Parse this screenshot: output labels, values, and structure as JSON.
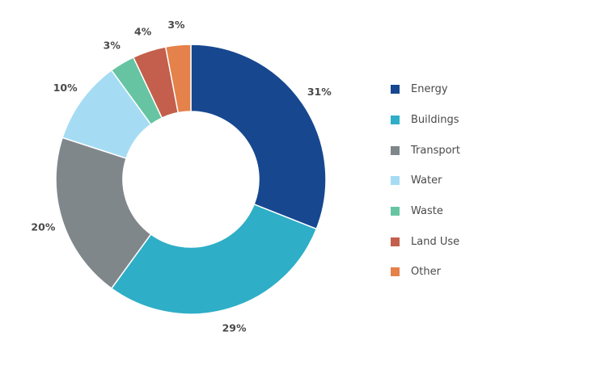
{
  "chart_data": {
    "type": "pie",
    "donut": true,
    "categories": [
      "Energy",
      "Buildings",
      "Transport",
      "Water",
      "Waste",
      "Land Use",
      "Other"
    ],
    "values": [
      31,
      29,
      20,
      10,
      3,
      4,
      3
    ],
    "labels": [
      "31%",
      "29%",
      "20%",
      "10%",
      "3%",
      "4%",
      "3%"
    ],
    "colors": [
      "#17478f",
      "#2eaec7",
      "#80878b",
      "#a5dcf4",
      "#66c4a2",
      "#c35f4c",
      "#e5814a"
    ],
    "legend_position": "right"
  }
}
